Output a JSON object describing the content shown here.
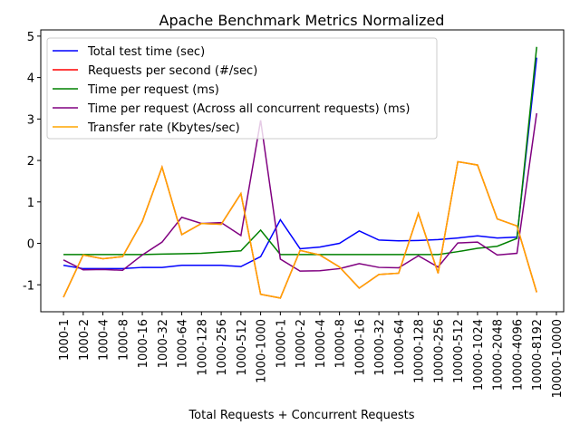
{
  "chart_data": {
    "type": "line",
    "title": "Apache Benchmark Metrics Normalized",
    "xlabel": "Total Requests + Concurrent Requests",
    "categories": [
      "1000-1",
      "1000-2",
      "1000-4",
      "1000-8",
      "1000-16",
      "1000-32",
      "1000-64",
      "1000-128",
      "1000-256",
      "1000-512",
      "1000-1000",
      "10000-1",
      "10000-2",
      "10000-4",
      "10000-8",
      "10000-16",
      "10000-32",
      "10000-64",
      "10000-128",
      "10000-256",
      "10000-512",
      "10000-1024",
      "10000-2048",
      "10000-4096",
      "10000-8192",
      "10000-10000"
    ],
    "series": [
      {
        "name": "Total test time (sec)",
        "color": "#0000ff",
        "values": [
          -0.53,
          -0.61,
          -0.61,
          -0.61,
          -0.58,
          -0.58,
          -0.53,
          -0.53,
          -0.53,
          -0.56,
          -0.32,
          0.57,
          -0.13,
          -0.09,
          0.0,
          0.3,
          0.08,
          0.06,
          0.07,
          0.09,
          0.13,
          0.18,
          0.13,
          0.15,
          4.48,
          null
        ]
      },
      {
        "name": "Requests per second (#/sec)",
        "color": "#ff0000",
        "values": [
          -1.3,
          -0.28,
          -0.37,
          -0.32,
          0.53,
          1.84,
          0.21,
          0.48,
          0.46,
          1.2,
          -1.23,
          -1.32,
          -0.17,
          -0.28,
          -0.57,
          -1.08,
          -0.75,
          -0.72,
          0.72,
          -0.72,
          1.97,
          1.89,
          0.59,
          0.42,
          -1.18,
          null
        ]
      },
      {
        "name": "Time per request (ms)",
        "color": "#008000",
        "values": [
          -0.27,
          -0.27,
          -0.27,
          -0.27,
          -0.27,
          -0.26,
          -0.25,
          -0.24,
          -0.21,
          -0.18,
          0.32,
          -0.27,
          -0.27,
          -0.27,
          -0.27,
          -0.27,
          -0.27,
          -0.27,
          -0.27,
          -0.27,
          -0.2,
          -0.12,
          -0.07,
          0.12,
          4.74,
          null
        ]
      },
      {
        "name": "Time per request (Across all concurrent requests) (ms)",
        "color": "#800080",
        "values": [
          -0.4,
          -0.64,
          -0.63,
          -0.65,
          -0.28,
          0.03,
          0.63,
          0.48,
          0.5,
          0.19,
          2.97,
          -0.38,
          -0.67,
          -0.66,
          -0.61,
          -0.49,
          -0.58,
          -0.59,
          -0.3,
          -0.57,
          0.01,
          0.03,
          -0.28,
          -0.24,
          3.14,
          null
        ]
      },
      {
        "name": "Transfer rate (Kbytes/sec)",
        "color": "#ffa500",
        "values": [
          -1.3,
          -0.28,
          -0.37,
          -0.32,
          0.53,
          1.84,
          0.21,
          0.48,
          0.46,
          1.2,
          -1.23,
          -1.32,
          -0.17,
          -0.28,
          -0.57,
          -1.08,
          -0.75,
          -0.72,
          0.72,
          -0.72,
          1.97,
          1.89,
          0.59,
          0.42,
          -1.18,
          null
        ]
      }
    ],
    "ylim": [
      -1.65,
      5.15
    ],
    "yticks": [
      -1,
      0,
      1,
      2,
      3,
      4,
      5
    ],
    "grid": false,
    "legend": "upper left"
  }
}
